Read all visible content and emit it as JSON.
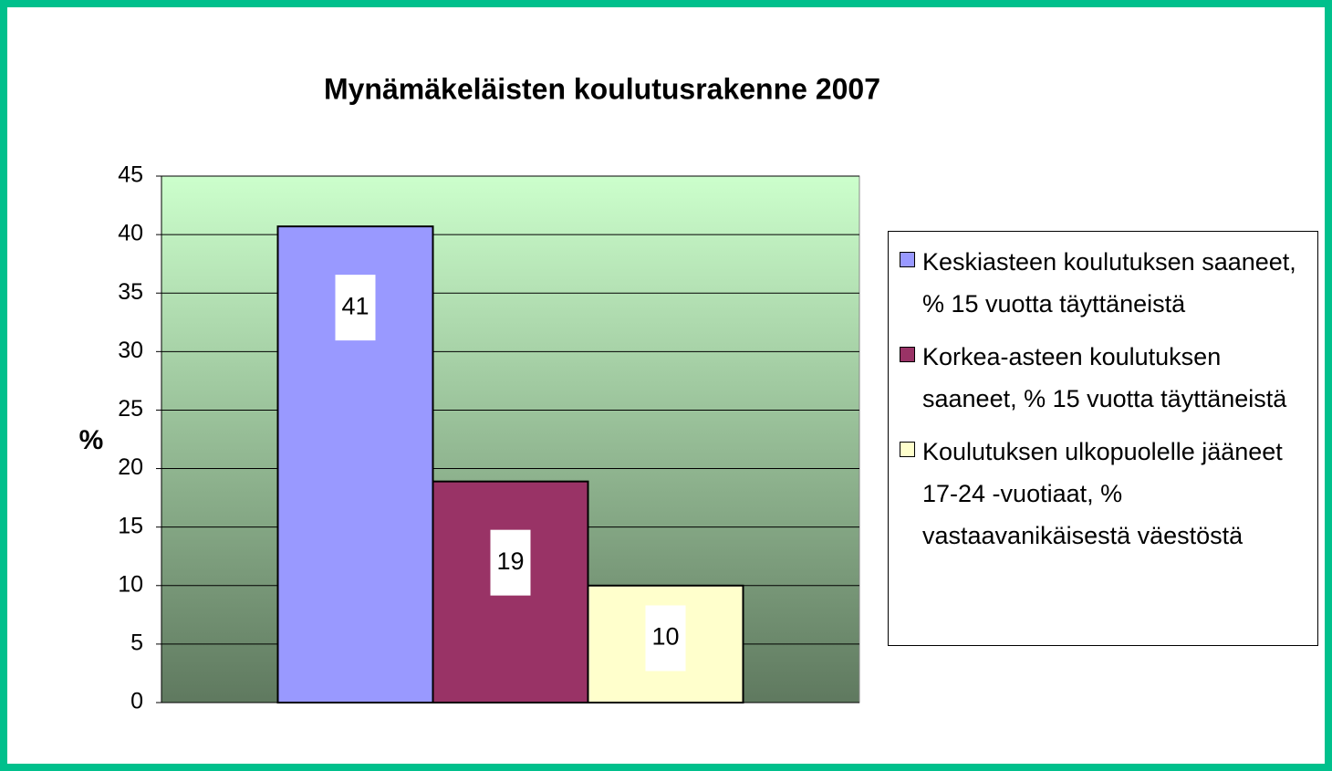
{
  "chart_data": {
    "type": "bar",
    "title": "Mynämäkeläisten koulutusrakenne 2007",
    "y_label": "%",
    "categories": [
      null
    ],
    "series": [
      {
        "name": "Keskiasteen koulutuksen saaneet, % 15 vuotta täyttäneistä",
        "color": "#9999ff",
        "values": [
          40.7
        ],
        "value_labels": [
          "41"
        ]
      },
      {
        "name": "Korkea-asteen koulutuksen saaneet, % 15 vuotta täyttäneistä",
        "color": "#993366",
        "values": [
          18.9
        ],
        "value_labels": [
          "19"
        ]
      },
      {
        "name": "Koulutuksen ulkopuolelle jääneet 17-24 -vuotiaat, % vastaavanikäisestä väestöstä",
        "color": "#ffffcc",
        "values": [
          10
        ]
      }
    ],
    "ylim": [
      0,
      45
    ],
    "yticks": [
      0,
      5,
      10,
      15,
      20,
      25,
      30,
      35,
      40,
      45
    ],
    "grid": true,
    "legend": "right"
  }
}
